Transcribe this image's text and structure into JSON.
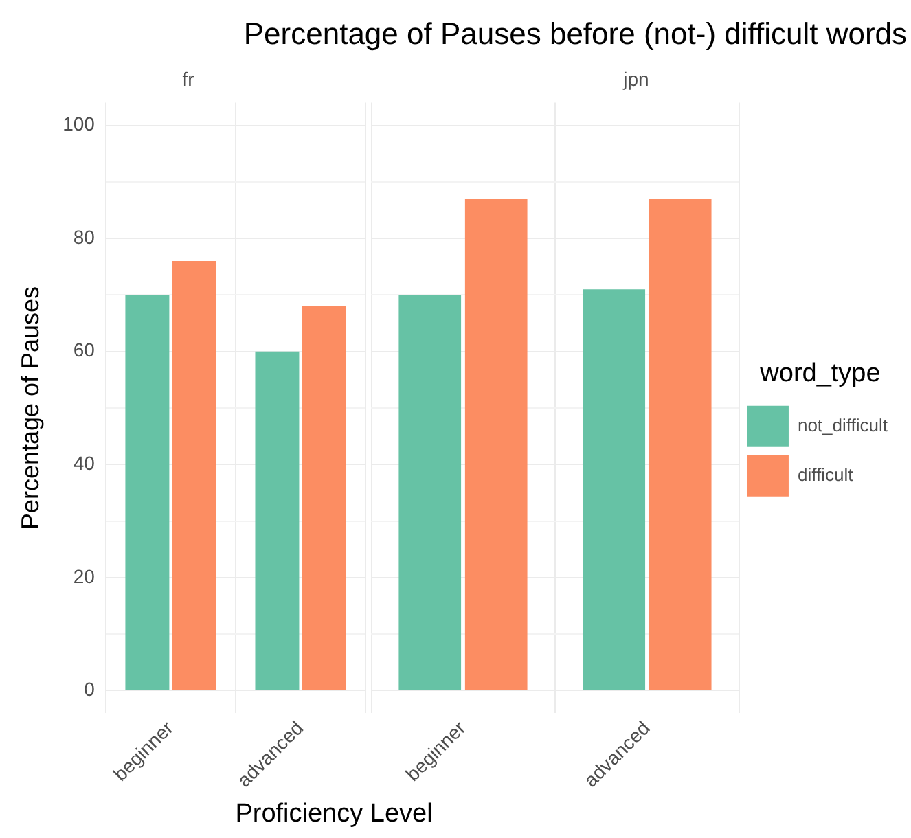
{
  "chart_data": [
    {
      "type": "bar",
      "title": "Percentage of Pauses before (not-) difficult words",
      "subtitle": "fr",
      "xlabel": "Proficiency Level",
      "ylabel": "Percentage of Pauses",
      "categories": [
        "beginner",
        "advanced"
      ],
      "series": [
        {
          "color": "#66c2a5",
          "values": [
            70,
            60
          ]
        },
        {
          "color": "#fc8d62",
          "values": [
            76,
            68
          ]
        }
      ],
      "ylim": [
        -4,
        104
      ],
      "yticks": [
        0,
        {
          "value": 10,
          "label": null
        },
        20,
        {
          "value": 30,
          "label": null
        },
        40,
        {
          "value": 50,
          "label": null
        },
        60,
        {
          "value": 70,
          "label": null
        },
        80,
        {
          "value": 90,
          "label": null
        },
        100
      ],
      "grid": true,
      "legend": false
    },
    {
      "type": "bar",
      "subtitle": "jpn",
      "legend_title": "word_type",
      "categories": [
        "beginner",
        "advanced"
      ],
      "series": [
        {
          "name": "not_difficult",
          "color": "#66c2a5",
          "values": [
            70,
            71
          ]
        },
        {
          "name": "difficult",
          "color": "#fc8d62",
          "values": [
            87,
            87
          ]
        }
      ],
      "ylim": [
        -4,
        104
      ],
      "yticks": [
        0,
        {
          "value": 10,
          "label": null
        },
        20,
        {
          "value": 30,
          "label": null
        },
        40,
        {
          "value": 50,
          "label": null
        },
        60,
        {
          "value": 70,
          "label": null
        },
        80,
        {
          "value": 90,
          "label": null
        },
        100
      ],
      "grid": true,
      "legend": "right",
      "tick_labels": "x"
    }
  ]
}
